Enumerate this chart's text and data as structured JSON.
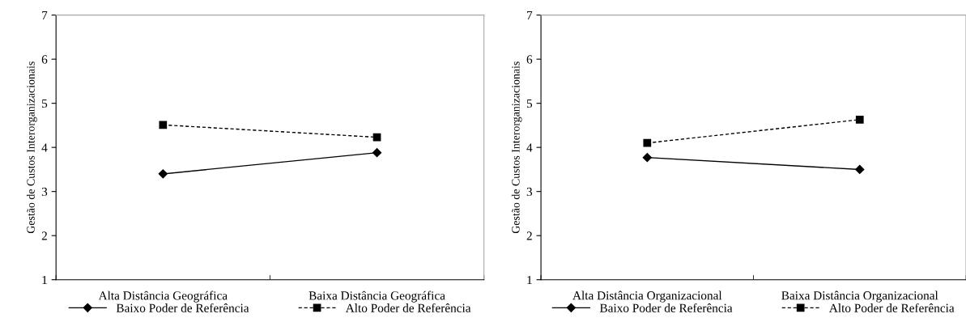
{
  "chart_data": [
    {
      "type": "line",
      "ylabel": "Gestão de Custos Interorganizacionais",
      "categories": [
        "Alta Distância Geográfica",
        "Baixa Distância Geográfica"
      ],
      "ylim": [
        1,
        7
      ],
      "yticks": [
        1,
        2,
        3,
        4,
        5,
        6,
        7
      ],
      "grid": false,
      "legend": "bottom",
      "series": [
        {
          "name": "Baixo Poder de Referência",
          "color": "#000000",
          "marker": "diamond",
          "line_style": "solid",
          "values": [
            3.4,
            3.88
          ]
        },
        {
          "name": "Alto Poder de Referência",
          "color": "#000000",
          "marker": "square",
          "line_style": "dashed",
          "values": [
            4.51,
            4.23
          ]
        }
      ]
    },
    {
      "type": "line",
      "ylabel": "Gestão de Custos Interorganizacionais",
      "categories": [
        "Alta Distância Organizacional",
        "Baixa Distância Organizacional"
      ],
      "ylim": [
        1,
        7
      ],
      "yticks": [
        1,
        2,
        3,
        4,
        5,
        6,
        7
      ],
      "grid": false,
      "legend": "bottom",
      "series": [
        {
          "name": "Baixo Poder de Referência",
          "color": "#000000",
          "marker": "diamond",
          "line_style": "solid",
          "values": [
            3.77,
            3.5
          ]
        },
        {
          "name": "Alto Poder de Referência",
          "color": "#000000",
          "marker": "square",
          "line_style": "dashed",
          "values": [
            4.1,
            4.63
          ]
        }
      ]
    }
  ]
}
